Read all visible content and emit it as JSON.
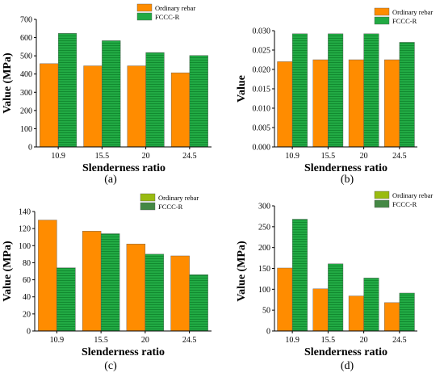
{
  "colors": {
    "ordinary": "#FF8C00",
    "fccc": "#22AA44",
    "fccc_stripe": "#128a30",
    "ordinary_alt_legend": "#99BB11",
    "fccc_alt": "#448844",
    "axis": "#000000",
    "text": "#000000"
  },
  "chart_data": [
    {
      "type": "bar",
      "panel_label": "(a)",
      "categories": [
        "10.9",
        "15.5",
        "20",
        "24.5"
      ],
      "series": [
        {
          "name": "Ordinary rebar",
          "values": [
            457,
            445,
            445,
            407
          ]
        },
        {
          "name": "FCCC-R",
          "values": [
            623,
            583,
            518,
            502
          ]
        }
      ],
      "xlabel": "Slenderness ratio",
      "ylabel": "Value (MPa)",
      "ylim": [
        0,
        700
      ],
      "yticks": [
        "0",
        "100",
        "200",
        "300",
        "400",
        "500",
        "600",
        "700"
      ],
      "legend": "top-right",
      "legend_style": "orange-green",
      "grid": false
    },
    {
      "type": "bar",
      "panel_label": "(b)",
      "categories": [
        "10.9",
        "15.5",
        "20",
        "24.5"
      ],
      "series": [
        {
          "name": "Ordinary rebar",
          "values": [
            0.022,
            0.0225,
            0.0225,
            0.0225
          ]
        },
        {
          "name": "FCCC-R",
          "values": [
            0.0292,
            0.0292,
            0.0292,
            0.027
          ]
        }
      ],
      "xlabel": "Slenderness ratio",
      "ylabel": "Value",
      "ylim": [
        0,
        0.03
      ],
      "yticks": [
        "0.000",
        "0.005",
        "0.010",
        "0.015",
        "0.020",
        "0.025",
        "0.030"
      ],
      "legend": "top-right",
      "legend_style": "orange-green",
      "grid": false
    },
    {
      "type": "bar",
      "panel_label": "(c)",
      "categories": [
        "10.9",
        "15.5",
        "20",
        "24.5"
      ],
      "series": [
        {
          "name": "Ordinary rebar",
          "values": [
            130,
            117,
            102,
            88
          ]
        },
        {
          "name": "FCCC-R",
          "values": [
            74,
            114,
            90,
            66
          ]
        }
      ],
      "xlabel": "Slenderness ratio",
      "ylabel": "Value (MPa)",
      "ylim": [
        0,
        140
      ],
      "yticks": [
        "0",
        "20",
        "40",
        "60",
        "80",
        "100",
        "120",
        "140"
      ],
      "legend": "top-right",
      "legend_style": "olive-darkgreen",
      "grid": false
    },
    {
      "type": "bar",
      "panel_label": "(d)",
      "categories": [
        "10.9",
        "15.5",
        "20",
        "24.5"
      ],
      "series": [
        {
          "name": "Ordinary rebar",
          "values": [
            151,
            101,
            84,
            68
          ]
        },
        {
          "name": "FCCC-R",
          "values": [
            268,
            161,
            127,
            91
          ]
        }
      ],
      "xlabel": "Slenderness ratio",
      "ylabel": "Value (MPa)",
      "ylim": [
        0,
        300
      ],
      "yticks": [
        "0",
        "50",
        "100",
        "150",
        "200",
        "250",
        "300"
      ],
      "legend": "top-right",
      "legend_style": "olive-darkgreen",
      "grid": false
    }
  ]
}
